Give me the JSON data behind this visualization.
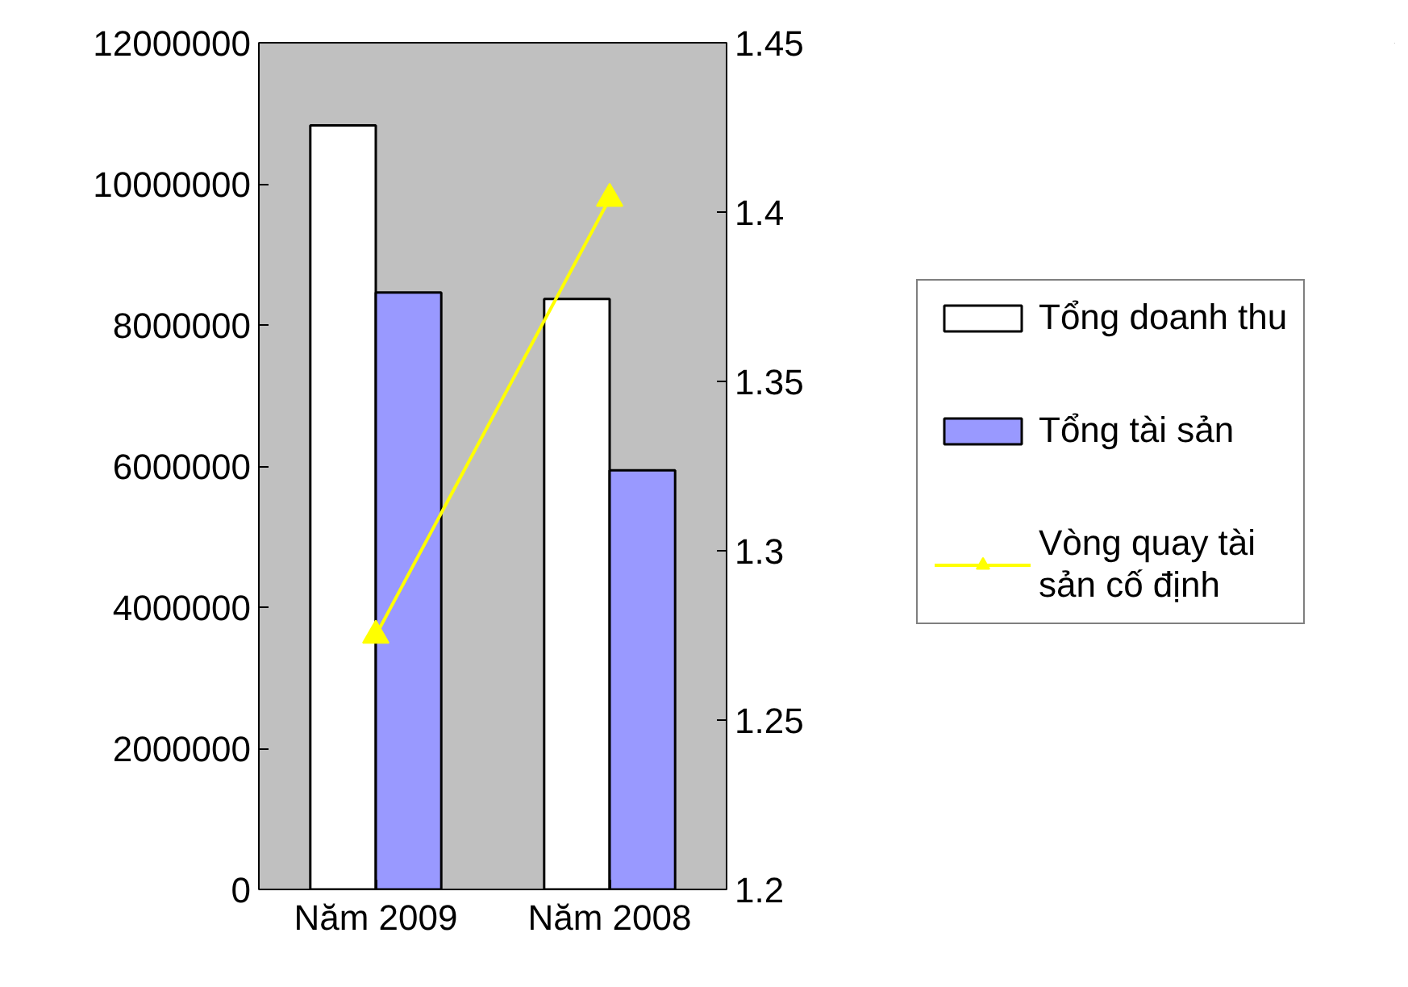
{
  "chart_data": {
    "type": "bar",
    "categories": [
      "Năm 2009",
      "Năm 2008"
    ],
    "series": [
      {
        "name": "Tổng doanh thu",
        "color": "#ffffff",
        "values": [
          10830000,
          8370000
        ]
      },
      {
        "name": "Tổng tài sản",
        "color": "#9999ff",
        "values": [
          8460000,
          5940000
        ]
      },
      {
        "name": "Vòng quay tài sản cố định",
        "color": "#ffff00",
        "type": "line",
        "axis": "y2",
        "marker": "triangle",
        "values": [
          1.275,
          1.404
        ]
      }
    ],
    "ylim": [
      0,
      12000000
    ],
    "yticks": [
      0,
      2000000,
      4000000,
      6000000,
      8000000,
      10000000,
      12000000
    ],
    "y2lim": [
      1.2,
      1.45
    ],
    "y2ticks": [
      1.2,
      1.25,
      1.3,
      1.35,
      1.4,
      1.45
    ],
    "grid": false,
    "legend": "right"
  }
}
